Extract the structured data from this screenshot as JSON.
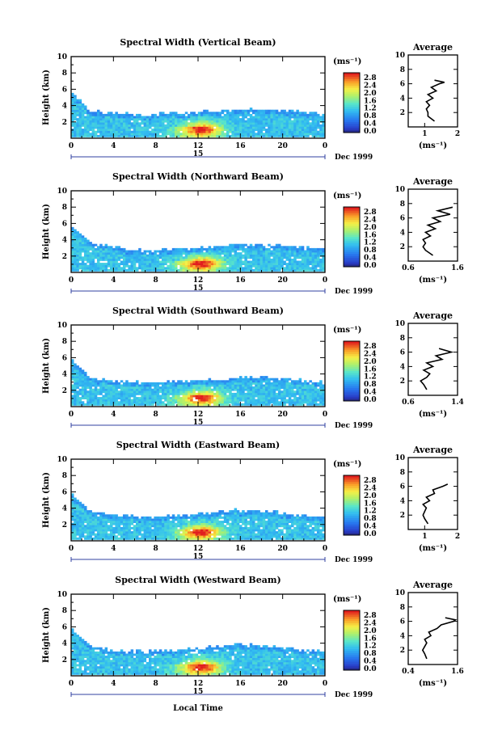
{
  "figure": {
    "xlabel": "Local Time",
    "date_label": "Dec 1999",
    "day_label": "15",
    "colorbar_unit": "(ms⁻¹)",
    "colorbar_ticks": [
      "2.8",
      "2.4",
      "2.0",
      "1.6",
      "1.2",
      "0.8",
      "0.4",
      "0.0"
    ],
    "avg_title": "Average",
    "avg_xlabel": "(ms⁻¹)",
    "x_ticks": [
      "0",
      "4",
      "8",
      "12",
      "16",
      "20",
      "0"
    ],
    "y_ticks": [
      "10",
      "8",
      "6",
      "4",
      "2"
    ],
    "avg_y_ticks": [
      "10",
      "8",
      "6",
      "4",
      "2"
    ],
    "ylabel": "Height (km)"
  },
  "chart_data": [
    {
      "type": "heatmap",
      "title": "Spectral Width (Vertical Beam)",
      "xlabel": "Local Time",
      "ylabel": "Height (km)",
      "xlim": [
        0,
        24
      ],
      "ylim": [
        0,
        10
      ],
      "top_height_profile": [
        5.5,
        3.2,
        3.0,
        2.9,
        2.8,
        2.9,
        3.0,
        3.1,
        3.2,
        3.4,
        3.5,
        3.4,
        3.3,
        3.0,
        2.8
      ],
      "hotspot": {
        "time": 12.3,
        "height": 1.0,
        "value": 2.8
      },
      "colorbar": {
        "min": 0.0,
        "max": 2.8,
        "unit": "ms-1"
      },
      "average_profile": {
        "xlim": [
          0.5,
          2.0
        ],
        "xticks": [
          "1",
          "2"
        ],
        "heights": [
          0.8,
          1.5,
          2.0,
          2.5,
          3.0,
          3.5,
          4.0,
          4.5,
          5.0,
          5.5,
          6.0,
          6.2,
          6.5
        ],
        "values": [
          1.3,
          1.1,
          1.1,
          1.05,
          1.15,
          1.05,
          1.25,
          1.1,
          1.35,
          1.2,
          1.45,
          1.6,
          1.3
        ]
      }
    },
    {
      "type": "heatmap",
      "title": "Spectral Width (Northward Beam)",
      "xlabel": "Local Time",
      "ylabel": "Height (km)",
      "xlim": [
        0,
        24
      ],
      "ylim": [
        0,
        10
      ],
      "top_height_profile": [
        5.5,
        3.5,
        3.0,
        2.8,
        2.6,
        2.7,
        2.8,
        2.9,
        3.1,
        3.2,
        3.3,
        3.2,
        3.1,
        2.9,
        2.7
      ],
      "hotspot": {
        "time": 12.3,
        "height": 1.0,
        "value": 2.8
      },
      "colorbar": {
        "min": 0.0,
        "max": 2.8,
        "unit": "ms-1"
      },
      "average_profile": {
        "xlim": [
          0.6,
          1.6
        ],
        "xticks": [
          "0.6",
          "1.6"
        ],
        "heights": [
          0.8,
          1.5,
          2.0,
          2.5,
          3.0,
          3.5,
          4.0,
          4.5,
          5.0,
          5.5,
          6.0,
          6.5,
          7.0,
          7.5
        ],
        "values": [
          1.1,
          0.95,
          0.9,
          0.95,
          0.9,
          1.05,
          0.95,
          1.15,
          1.0,
          1.25,
          1.1,
          1.45,
          1.2,
          1.5
        ]
      }
    },
    {
      "type": "heatmap",
      "title": "Spectral Width (Southward Beam)",
      "xlabel": "Local Time",
      "ylabel": "Height (km)",
      "xlim": [
        0,
        24
      ],
      "ylim": [
        0,
        10
      ],
      "top_height_profile": [
        5.5,
        3.5,
        3.1,
        3.0,
        2.8,
        2.9,
        3.0,
        3.1,
        3.2,
        3.4,
        3.5,
        3.4,
        3.2,
        3.0,
        2.8
      ],
      "hotspot": {
        "time": 12.3,
        "height": 1.0,
        "value": 2.8
      },
      "colorbar": {
        "min": 0.0,
        "max": 2.8,
        "unit": "ms-1"
      },
      "average_profile": {
        "xlim": [
          0.6,
          1.4
        ],
        "xticks": [
          "0.6",
          "1.4"
        ],
        "heights": [
          0.8,
          1.5,
          2.0,
          2.5,
          3.0,
          3.5,
          4.0,
          4.5,
          5.0,
          5.5,
          6.0,
          6.5
        ],
        "values": [
          0.9,
          0.85,
          0.8,
          0.9,
          0.95,
          0.85,
          1.0,
          0.9,
          1.15,
          1.05,
          1.3,
          1.1
        ]
      }
    },
    {
      "type": "heatmap",
      "title": "Spectral Width (Eastward Beam)",
      "xlabel": "Local Time",
      "ylabel": "Height (km)",
      "xlim": [
        0,
        24
      ],
      "ylim": [
        0,
        10
      ],
      "top_height_profile": [
        5.5,
        3.6,
        3.1,
        3.0,
        2.8,
        2.9,
        3.0,
        3.2,
        3.4,
        3.6,
        3.6,
        3.4,
        3.2,
        3.0,
        2.8
      ],
      "hotspot": {
        "time": 12.3,
        "height": 1.0,
        "value": 2.8
      },
      "colorbar": {
        "min": 0.0,
        "max": 2.8,
        "unit": "ms-1"
      },
      "average_profile": {
        "xlim": [
          0.5,
          2.0
        ],
        "xticks": [
          "1",
          "2"
        ],
        "heights": [
          0.8,
          1.5,
          2.0,
          2.5,
          3.0,
          3.5,
          4.0,
          4.5,
          5.0,
          5.5,
          6.0,
          6.3
        ],
        "values": [
          1.1,
          1.0,
          0.95,
          1.0,
          1.05,
          0.95,
          1.15,
          1.05,
          1.3,
          1.25,
          1.55,
          1.7
        ]
      }
    },
    {
      "type": "heatmap",
      "title": "Spectral Width (Westward Beam)",
      "xlabel": "Local Time",
      "ylabel": "Height (km)",
      "xlim": [
        0,
        24
      ],
      "ylim": [
        0,
        10
      ],
      "top_height_profile": [
        5.5,
        3.6,
        3.0,
        2.9,
        2.8,
        2.9,
        3.1,
        3.3,
        3.5,
        3.7,
        3.6,
        3.4,
        3.2,
        3.0,
        2.8
      ],
      "hotspot": {
        "time": 12.3,
        "height": 1.0,
        "value": 2.8
      },
      "colorbar": {
        "min": 0.0,
        "max": 2.8,
        "unit": "ms-1"
      },
      "average_profile": {
        "xlim": [
          0.4,
          1.6
        ],
        "xticks": [
          "0.4",
          "1.6"
        ],
        "heights": [
          0.8,
          1.5,
          2.0,
          2.5,
          3.0,
          3.5,
          4.0,
          4.5,
          5.0,
          5.5,
          6.0,
          6.2,
          6.5
        ],
        "values": [
          0.85,
          0.8,
          0.75,
          0.8,
          0.85,
          0.8,
          0.95,
          0.9,
          1.1,
          1.2,
          1.5,
          1.55,
          1.3
        ]
      }
    }
  ]
}
